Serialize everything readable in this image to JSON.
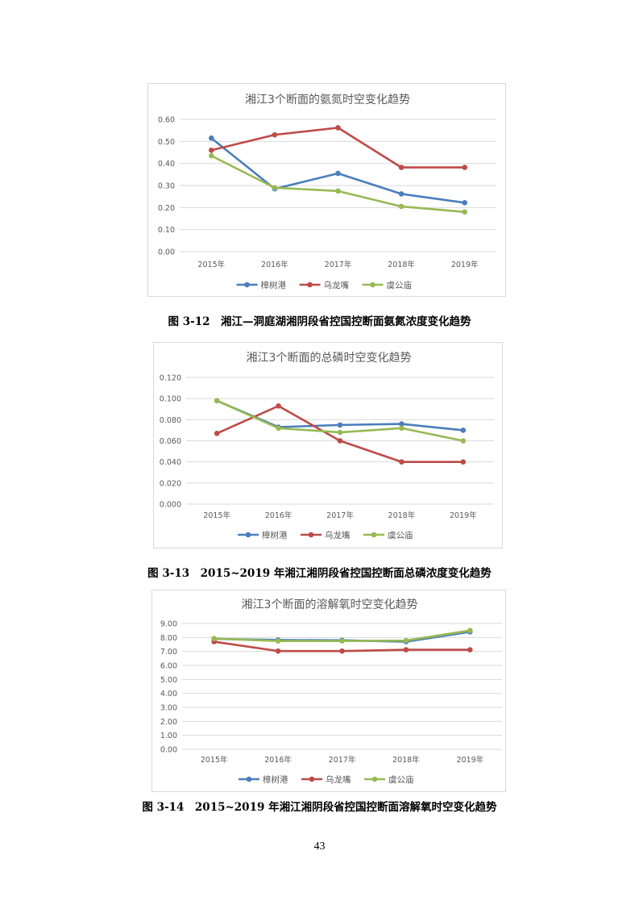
{
  "chart_data": [
    {
      "type": "line",
      "title": "湘江3个断面的氨氮时空变化趋势",
      "categories": [
        "2015年",
        "2016年",
        "2017年",
        "2018年",
        "2019年"
      ],
      "ylim": [
        0,
        0.6
      ],
      "yticks": [
        "0.00",
        "0.10",
        "0.20",
        "0.30",
        "0.40",
        "0.50",
        "0.60"
      ],
      "grid": true,
      "legend": "bottom",
      "series": [
        {
          "name": "樟树港",
          "color": "#4a7ebb",
          "values": [
            0.515,
            0.285,
            0.355,
            0.262,
            0.222
          ]
        },
        {
          "name": "乌龙嘴",
          "color": "#be4b48",
          "values": [
            0.46,
            0.53,
            0.562,
            0.382,
            0.382
          ]
        },
        {
          "name": "虞公庙",
          "color": "#98b954",
          "values": [
            0.435,
            0.29,
            0.275,
            0.205,
            0.18
          ]
        }
      ]
    },
    {
      "type": "line",
      "title": "湘江3个断面的总磷时空变化趋势",
      "categories": [
        "2015年",
        "2016年",
        "2017年",
        "2018年",
        "2019年"
      ],
      "ylim": [
        0,
        0.12
      ],
      "yticks": [
        "0.000",
        "0.020",
        "0.040",
        "0.060",
        "0.080",
        "0.100",
        "0.120"
      ],
      "grid": true,
      "legend": "bottom",
      "series": [
        {
          "name": "樟树港",
          "color": "#4a7ebb",
          "values": [
            0.098,
            0.073,
            0.075,
            0.076,
            0.07
          ]
        },
        {
          "name": "乌龙嘴",
          "color": "#be4b48",
          "values": [
            0.067,
            0.093,
            0.06,
            0.04,
            0.04
          ]
        },
        {
          "name": "虞公庙",
          "color": "#98b954",
          "values": [
            0.098,
            0.072,
            0.068,
            0.072,
            0.06
          ]
        }
      ]
    },
    {
      "type": "line",
      "title": "湘江3个断面的溶解氧时空变化趋势",
      "categories": [
        "2015年",
        "2016年",
        "2017年",
        "2018年",
        "2019年"
      ],
      "ylim": [
        0,
        9
      ],
      "yticks": [
        "0.00",
        "1.00",
        "2.00",
        "3.00",
        "4.00",
        "5.00",
        "6.00",
        "7.00",
        "8.00",
        "9.00"
      ],
      "grid": true,
      "legend": "bottom",
      "series": [
        {
          "name": "樟树港",
          "color": "#4a7ebb",
          "values": [
            7.9,
            7.82,
            7.8,
            7.7,
            8.4
          ]
        },
        {
          "name": "乌龙嘴",
          "color": "#be4b48",
          "values": [
            7.7,
            7.03,
            7.03,
            7.12,
            7.12
          ]
        },
        {
          "name": "虞公庙",
          "color": "#98b954",
          "values": [
            7.92,
            7.75,
            7.75,
            7.78,
            8.5
          ]
        }
      ]
    }
  ],
  "captions": [
    "图 3-12　湘江—洞庭湖湘阴段省控国控断面氨氮浓度变化趋势",
    "图 3-13　2015~2019 年湘江湘阴段省控国控断面总磷浓度变化趋势",
    "图 3-14　2015~2019 年湘江湘阴段省控国控断面溶解氧时空变化趋势"
  ],
  "page_number": "43"
}
